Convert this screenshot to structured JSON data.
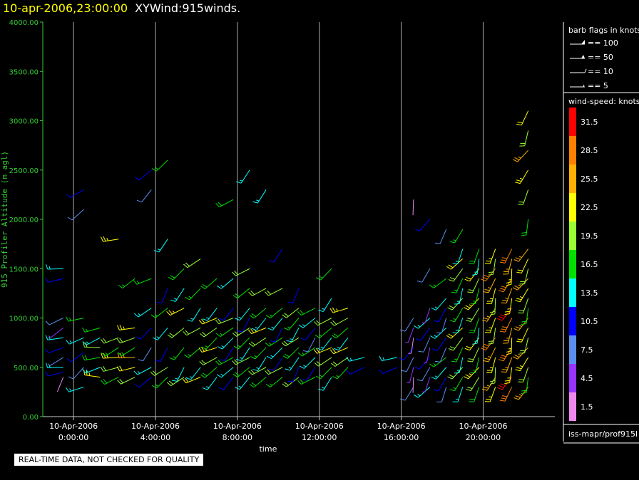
{
  "header": {
    "timestamp": "10-apr-2006,23:00:00",
    "product": "XYWind:915winds."
  },
  "chart_data": {
    "type": "wind-barb time-height",
    "ylabel": "915 Profiler Altitude (m agl)",
    "xlabel": "time",
    "ylim": [
      0,
      4000
    ],
    "y_ticks": [
      "0.00",
      "500.00",
      "1000.00",
      "1500.00",
      "2000.00",
      "2500.00",
      "3000.00",
      "3500.00",
      "4000.00"
    ],
    "x_range_hours": [
      -1.5,
      23.5
    ],
    "x_ticks": [
      {
        "hour": 0,
        "date": "10-Apr-2006",
        "time": "0:00:00"
      },
      {
        "hour": 4,
        "date": "10-Apr-2006",
        "time": "4:00:00"
      },
      {
        "hour": 8,
        "date": "10-Apr-2006",
        "time": "8:00:00"
      },
      {
        "hour": 12,
        "date": "10-Apr-2006",
        "time": "12:00:00"
      },
      {
        "hour": 16,
        "date": "10-Apr-2006",
        "time": "16:00:00"
      },
      {
        "hour": 20,
        "date": "10-Apr-2006",
        "time": "20:00:00"
      }
    ],
    "gridlines_vertical": true,
    "barb_legend": {
      "title": "barb flags in knots",
      "items": [
        "== 100",
        "== 50",
        "== 10",
        "== 5"
      ]
    },
    "speed_legend": {
      "title": "wind-speed: knots",
      "bins": [
        {
          "label": "31.5",
          "color": "#ff0000"
        },
        {
          "label": "28.5",
          "color": "#ff8000"
        },
        {
          "label": "25.5",
          "color": "#ffb000"
        },
        {
          "label": "22.5",
          "color": "#ffff00"
        },
        {
          "label": "19.5",
          "color": "#99ff33"
        },
        {
          "label": "16.5",
          "color": "#00e000"
        },
        {
          "label": "13.5",
          "color": "#00ffff"
        },
        {
          "label": "10.5",
          "color": "#0000ff"
        },
        {
          "label": "7.5",
          "color": "#5a8ff0"
        },
        {
          "label": "4.5",
          "color": "#9933ff"
        },
        {
          "label": "1.5",
          "color": "#ee88ee"
        }
      ]
    },
    "wind_columns": [
      {
        "hour": -0.5,
        "alts": [
          400,
          450,
          500,
          600,
          700,
          800,
          900,
          1000,
          1400,
          1500
        ],
        "dir": 250,
        "speed": 10
      },
      {
        "hour": 0.5,
        "alts": [
          300,
          500,
          650,
          800,
          1000,
          2100,
          2300
        ],
        "dir": 240,
        "speed": 12
      },
      {
        "hour": 1.3,
        "alts": [
          400,
          500,
          600,
          700,
          800,
          900
        ],
        "dir": 260,
        "speed": 18
      },
      {
        "hour": 2.2,
        "alts": [
          400,
          500,
          600,
          700,
          800,
          1800
        ],
        "dir": 255,
        "speed": 21
      },
      {
        "hour": 3.0,
        "alts": [
          400,
          500,
          600,
          700,
          800,
          900,
          1400
        ],
        "dir": 250,
        "speed": 20
      },
      {
        "hour": 3.8,
        "alts": [
          400,
          500,
          700,
          900,
          1100,
          1400,
          2300,
          2500
        ],
        "dir": 230,
        "speed": 12
      },
      {
        "hour": 4.6,
        "alts": [
          400,
          500,
          700,
          900,
          1100,
          1300,
          1800,
          2600
        ],
        "dir": 220,
        "speed": 14
      },
      {
        "hour": 5.4,
        "alts": [
          400,
          500,
          700,
          900,
          1100,
          1300,
          1500
        ],
        "dir": 225,
        "speed": 18
      },
      {
        "hour": 6.2,
        "alts": [
          400,
          500,
          700,
          900,
          1100,
          1300,
          1600
        ],
        "dir": 230,
        "speed": 17
      },
      {
        "hour": 7.0,
        "alts": [
          400,
          500,
          600,
          700,
          800,
          900,
          1000,
          1100,
          1400
        ],
        "dir": 235,
        "speed": 19
      },
      {
        "hour": 7.8,
        "alts": [
          400,
          500,
          600,
          700,
          800,
          900,
          1000,
          1100,
          1400,
          2200
        ],
        "dir": 230,
        "speed": 15
      },
      {
        "hour": 8.6,
        "alts": [
          400,
          500,
          600,
          700,
          800,
          900,
          1000,
          1100,
          1300,
          1500,
          2500
        ],
        "dir": 225,
        "speed": 16
      },
      {
        "hour": 9.4,
        "alts": [
          400,
          500,
          600,
          700,
          800,
          900,
          1000,
          1100,
          1300,
          2300
        ],
        "dir": 230,
        "speed": 18
      },
      {
        "hour": 10.2,
        "alts": [
          400,
          500,
          600,
          700,
          800,
          900,
          1000,
          1100,
          1300,
          1700
        ],
        "dir": 225,
        "speed": 14
      },
      {
        "hour": 11.0,
        "alts": [
          400,
          500,
          600,
          700,
          800,
          900,
          1000,
          1100,
          1300
        ],
        "dir": 220,
        "speed": 16
      },
      {
        "hour": 11.8,
        "alts": [
          400,
          500,
          600,
          700,
          800,
          900,
          1000,
          1100
        ],
        "dir": 225,
        "speed": 13
      },
      {
        "hour": 12.6,
        "alts": [
          400,
          500,
          600,
          700,
          800,
          900,
          1000,
          1200,
          1500
        ],
        "dir": 230,
        "speed": 17
      },
      {
        "hour": 13.4,
        "alts": [
          500,
          600,
          700,
          800,
          900,
          1000,
          1100
        ],
        "dir": 235,
        "speed": 19
      },
      {
        "hour": 14.2,
        "alts": [
          500,
          600
        ],
        "dir": 250,
        "speed": 11
      },
      {
        "hour": 15.8,
        "alts": [
          500,
          600
        ],
        "dir": 240,
        "speed": 8
      },
      {
        "hour": 16.6,
        "alts": [
          300,
          400,
          500,
          600,
          700,
          800,
          900,
          1000,
          2200
        ],
        "dir": 200,
        "speed": 6
      },
      {
        "hour": 17.4,
        "alts": [
          300,
          400,
          500,
          600,
          700,
          800,
          900,
          1000,
          1100,
          1500,
          2000
        ],
        "dir": 210,
        "speed": 9
      },
      {
        "hour": 18.2,
        "alts": [
          300,
          400,
          500,
          600,
          700,
          800,
          900,
          1000,
          1100,
          1200,
          1400,
          1900
        ],
        "dir": 215,
        "speed": 12
      },
      {
        "hour": 19.0,
        "alts": [
          300,
          400,
          500,
          600,
          700,
          800,
          900,
          1000,
          1100,
          1200,
          1300,
          1400,
          1500,
          1600,
          1700,
          1900
        ],
        "dir": 210,
        "speed": 17
      },
      {
        "hour": 19.8,
        "alts": [
          300,
          400,
          500,
          600,
          700,
          800,
          900,
          1000,
          1100,
          1200,
          1300,
          1400,
          1500,
          1600,
          1700
        ],
        "dir": 205,
        "speed": 19
      },
      {
        "hour": 20.6,
        "alts": [
          300,
          400,
          500,
          600,
          700,
          800,
          900,
          1000,
          1100,
          1200,
          1300,
          1400,
          1500,
          1600,
          1700
        ],
        "dir": 200,
        "speed": 24
      },
      {
        "hour": 21.4,
        "alts": [
          300,
          400,
          500,
          600,
          700,
          800,
          900,
          1000,
          1100,
          1200,
          1300,
          1400,
          1500,
          1600,
          1700
        ],
        "dir": 200,
        "speed": 27
      },
      {
        "hour": 22.2,
        "alts": [
          300,
          400,
          500,
          600,
          700,
          800,
          900,
          1000,
          1100,
          1200,
          1300,
          1400,
          1500,
          1600,
          1700,
          2000,
          2300,
          2500,
          2700,
          2900,
          3100
        ],
        "dir": 205,
        "speed": 22
      }
    ]
  },
  "notice": "REAL-TIME DATA, NOT CHECKED FOR QUALITY",
  "footer": "iss-mapr/prof915l"
}
